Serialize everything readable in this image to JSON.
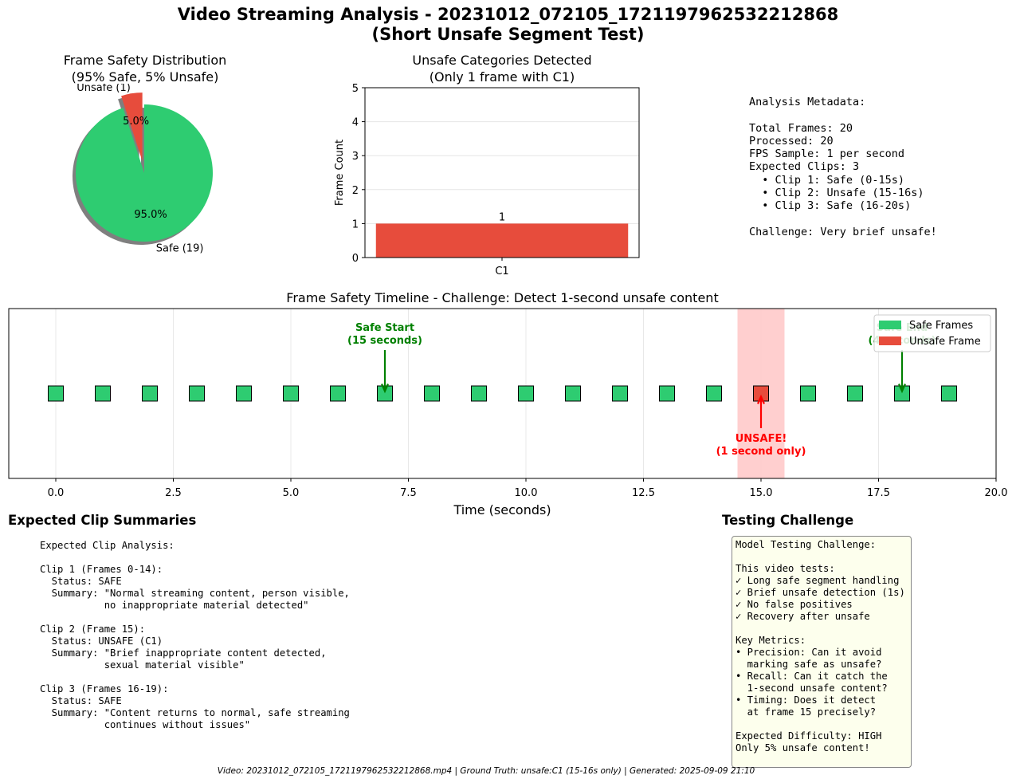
{
  "page": {
    "title": "Video Streaming Analysis - 20231012_072105_1721197962532212868\n(Short Unsafe Segment Test)",
    "footer": "Video: 20231012_072105_1721197962532212868.mp4 | Ground Truth: unsafe:C1 (15-16s only) | Generated: 2025-09-09 21:10"
  },
  "colors": {
    "safe": "#2ecc71",
    "unsafe": "#e74c3c",
    "unsafe_region": "#ffcccc",
    "annotation_safe": "#008000",
    "annotation_unsafe": "#ff0000"
  },
  "chart_data": [
    {
      "type": "pie",
      "title": "Frame Safety Distribution\n(95% Safe, 5% Unsafe)",
      "slices": [
        {
          "label": "Safe (19)",
          "value": 19,
          "pct_label": "95.0%",
          "color": "#2ecc71"
        },
        {
          "label": "Unsafe (1)",
          "value": 1,
          "pct_label": "5.0%",
          "color": "#e74c3c",
          "exploded": true
        }
      ],
      "shadow": true
    },
    {
      "type": "bar",
      "title": "Unsafe Categories Detected\n(Only 1 frame with C1)",
      "categories": [
        "C1"
      ],
      "values": [
        1
      ],
      "data_labels": [
        "1"
      ],
      "ylabel": "Frame Count",
      "xlabel": "",
      "ylim": [
        0,
        5
      ],
      "yticks": [
        0,
        1,
        2,
        3,
        4,
        5
      ],
      "grid": "y",
      "color": "#e74c3c"
    },
    {
      "type": "scatter",
      "title": "Frame Safety Timeline - Challenge: Detect 1-second unsafe content",
      "xlabel": "Time (seconds)",
      "xlim": [
        -1,
        20
      ],
      "xticks": [
        0.0,
        2.5,
        5.0,
        7.5,
        10.0,
        12.5,
        15.0,
        17.5,
        20.0
      ],
      "xtick_labels": [
        "0.0",
        "2.5",
        "5.0",
        "7.5",
        "10.0",
        "12.5",
        "15.0",
        "17.5",
        "20.0"
      ],
      "grid": "x",
      "points": [
        {
          "x": 0,
          "status": "safe"
        },
        {
          "x": 1,
          "status": "safe"
        },
        {
          "x": 2,
          "status": "safe"
        },
        {
          "x": 3,
          "status": "safe"
        },
        {
          "x": 4,
          "status": "safe"
        },
        {
          "x": 5,
          "status": "safe"
        },
        {
          "x": 6,
          "status": "safe"
        },
        {
          "x": 7,
          "status": "safe"
        },
        {
          "x": 8,
          "status": "safe"
        },
        {
          "x": 9,
          "status": "safe"
        },
        {
          "x": 10,
          "status": "safe"
        },
        {
          "x": 11,
          "status": "safe"
        },
        {
          "x": 12,
          "status": "safe"
        },
        {
          "x": 13,
          "status": "safe"
        },
        {
          "x": 14,
          "status": "safe"
        },
        {
          "x": 15,
          "status": "unsafe"
        },
        {
          "x": 16,
          "status": "safe"
        },
        {
          "x": 17,
          "status": "safe"
        },
        {
          "x": 18,
          "status": "safe"
        },
        {
          "x": 19,
          "status": "safe"
        }
      ],
      "highlight_span": [
        14.5,
        15.5
      ],
      "legend": {
        "placement": "upper right",
        "entries": [
          "Safe Frames",
          "Unsafe Frame"
        ]
      },
      "annotations": [
        {
          "text": "Safe Start\n(15 seconds)",
          "x": 7,
          "color": "annotation_safe",
          "side": "above"
        },
        {
          "text": "UNSAFE!\n(1 second only)",
          "x": 15,
          "color": "annotation_unsafe",
          "side": "below"
        },
        {
          "text": "Safe End\n(4 seconds)",
          "x": 18,
          "color": "annotation_safe",
          "side": "above"
        }
      ]
    }
  ],
  "metadata_panel": {
    "text": "Analysis Metadata:\n\nTotal Frames: 20\nProcessed: 20\nFPS Sample: 1 per second\nExpected Clips: 3\n  • Clip 1: Safe (0-15s)\n  • Clip 2: Unsafe (15-16s)\n  • Clip 3: Safe (16-20s)\n\nChallenge: Very brief unsafe!"
  },
  "clip_summaries": {
    "heading": "Expected Clip Summaries",
    "text": "Expected Clip Analysis:\n\nClip 1 (Frames 0-14):\n  Status: SAFE\n  Summary: \"Normal streaming content, person visible,\n           no inappropriate material detected\"\n\nClip 2 (Frame 15):\n  Status: UNSAFE (C1)\n  Summary: \"Brief inappropriate content detected,\n           sexual material visible\"\n\nClip 3 (Frames 16-19):\n  Status: SAFE\n  Summary: \"Content returns to normal, safe streaming\n           continues without issues\""
  },
  "testing_challenge": {
    "heading": "Testing Challenge",
    "text": "Model Testing Challenge:\n\nThis video tests:\n✓ Long safe segment handling\n✓ Brief unsafe detection (1s)\n✓ No false positives\n✓ Recovery after unsafe\n\nKey Metrics:\n• Precision: Can it avoid\n  marking safe as unsafe?\n• Recall: Can it catch the\n  1-second unsafe content?\n• Timing: Does it detect\n  at frame 15 precisely?\n\nExpected Difficulty: HIGH\nOnly 5% unsafe content!"
  }
}
